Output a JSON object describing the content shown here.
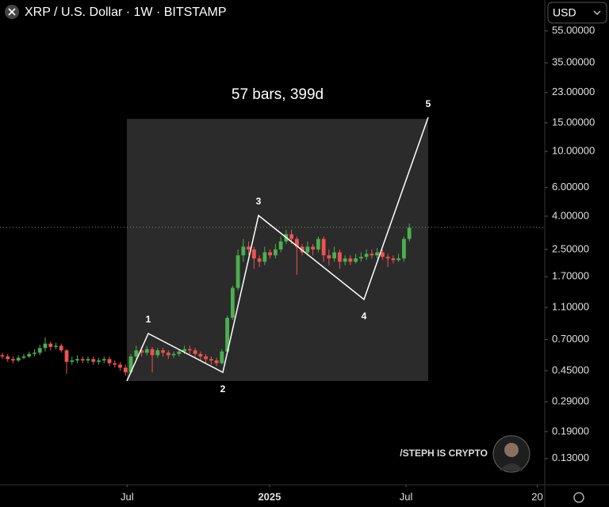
{
  "chart_data": {
    "type": "candlestick",
    "title": "XRP / U.S. Dollar · 1W · BITSTAMP",
    "currency": "USD",
    "annotation": "57 bars, 399d",
    "wave_labels": [
      "1",
      "2",
      "3",
      "4",
      "5"
    ],
    "watermark": "/STEPH IS CRYPTO",
    "log_scale": true,
    "up_color": "#4caf50",
    "down_color": "#ef5350",
    "categories": [
      null,
      null,
      null,
      null,
      null,
      null,
      null,
      null,
      null,
      null,
      null,
      null,
      null,
      null,
      null,
      null,
      null,
      null,
      null,
      null,
      null,
      null,
      null,
      null,
      null,
      null,
      null,
      null,
      null,
      null,
      null,
      null,
      null,
      null,
      null,
      null,
      null,
      null,
      null,
      null,
      null,
      null,
      null,
      null,
      null,
      null,
      null,
      null,
      null,
      null,
      null,
      null,
      null,
      null,
      null,
      null,
      null,
      null,
      null,
      null,
      null,
      null,
      null,
      null,
      null,
      null,
      null,
      null,
      null,
      null,
      null,
      null,
      null,
      null,
      null,
      null,
      null
    ],
    "open": [
      0.56,
      0.55,
      0.53,
      0.52,
      0.54,
      0.55,
      0.57,
      0.58,
      0.62,
      0.66,
      0.63,
      0.64,
      0.6,
      0.51,
      0.52,
      0.53,
      0.52,
      0.53,
      0.51,
      0.52,
      0.53,
      0.5,
      0.49,
      0.47,
      0.44,
      0.55,
      0.6,
      0.58,
      0.61,
      0.56,
      0.6,
      0.58,
      0.56,
      0.57,
      0.59,
      0.61,
      0.6,
      0.57,
      0.55,
      0.53,
      0.52,
      0.5,
      0.59,
      0.95,
      1.45,
      2.3,
      2.6,
      2.5,
      2.2,
      2.1,
      2.4,
      2.3,
      2.5,
      2.8,
      3.1,
      2.9,
      2.6,
      2.4,
      2.6,
      2.5,
      2.9,
      2.3,
      2.2,
      2.4,
      2.1,
      2.2,
      2.1,
      2.2,
      2.25,
      2.35,
      2.3,
      2.4,
      2.25,
      2.2,
      2.15,
      2.2,
      2.9
    ],
    "high": [
      0.58,
      0.57,
      0.55,
      0.56,
      0.57,
      0.59,
      0.61,
      0.65,
      0.72,
      0.68,
      0.67,
      0.66,
      0.61,
      0.55,
      0.56,
      0.55,
      0.55,
      0.55,
      0.54,
      0.55,
      0.55,
      0.52,
      0.51,
      0.49,
      0.57,
      0.64,
      0.63,
      0.64,
      0.63,
      0.62,
      0.62,
      0.6,
      0.59,
      0.61,
      0.64,
      0.64,
      0.62,
      0.59,
      0.57,
      0.55,
      0.54,
      0.61,
      0.98,
      1.5,
      2.5,
      2.9,
      2.8,
      2.6,
      2.3,
      2.6,
      2.5,
      2.7,
      3.0,
      3.3,
      3.3,
      3.0,
      2.7,
      2.8,
      2.7,
      3.0,
      3.0,
      2.5,
      2.6,
      2.5,
      2.3,
      2.3,
      2.35,
      2.4,
      2.5,
      2.5,
      2.55,
      2.5,
      2.35,
      2.3,
      2.35,
      3.0,
      3.6
    ],
    "low": [
      0.53,
      0.51,
      0.5,
      0.51,
      0.53,
      0.54,
      0.55,
      0.56,
      0.59,
      0.6,
      0.61,
      0.58,
      0.43,
      0.49,
      0.5,
      0.5,
      0.5,
      0.49,
      0.49,
      0.5,
      0.48,
      0.47,
      0.45,
      0.42,
      0.43,
      0.53,
      0.55,
      0.56,
      0.44,
      0.54,
      0.55,
      0.53,
      0.54,
      0.55,
      0.57,
      0.57,
      0.54,
      0.52,
      0.5,
      0.49,
      0.48,
      0.49,
      0.57,
      0.92,
      1.4,
      2.1,
      2.3,
      1.9,
      1.95,
      2.0,
      2.2,
      2.2,
      2.4,
      2.7,
      2.7,
      1.75,
      2.3,
      2.3,
      2.3,
      2.4,
      2.1,
      2.0,
      2.1,
      1.9,
      2.0,
      2.0,
      2.05,
      2.1,
      2.15,
      2.2,
      2.2,
      2.15,
      1.95,
      2.05,
      2.1,
      2.1,
      2.8
    ],
    "close": [
      0.55,
      0.53,
      0.52,
      0.54,
      0.55,
      0.57,
      0.58,
      0.62,
      0.66,
      0.63,
      0.64,
      0.6,
      0.51,
      0.52,
      0.53,
      0.52,
      0.53,
      0.51,
      0.52,
      0.53,
      0.5,
      0.49,
      0.47,
      0.44,
      0.55,
      0.6,
      0.58,
      0.61,
      0.56,
      0.6,
      0.58,
      0.56,
      0.57,
      0.59,
      0.61,
      0.6,
      0.57,
      0.55,
      0.53,
      0.52,
      0.5,
      0.59,
      0.95,
      1.45,
      2.3,
      2.6,
      2.5,
      2.2,
      2.1,
      2.4,
      2.3,
      2.5,
      2.8,
      3.1,
      2.9,
      2.6,
      2.4,
      2.6,
      2.5,
      2.9,
      2.3,
      2.2,
      2.4,
      2.1,
      2.2,
      2.1,
      2.2,
      2.25,
      2.35,
      2.3,
      2.4,
      2.25,
      2.2,
      2.15,
      2.2,
      2.9,
      3.4
    ],
    "xlim": [
      -0.44,
      101.3
    ],
    "xticks": [
      {
        "value": 23.3,
        "label": "Jul"
      },
      {
        "value": 49.9,
        "label": "2025"
      },
      {
        "value": 75.4,
        "label": "Jul"
      },
      {
        "value": 99.9,
        "label": "20"
      }
    ],
    "ylim": [
      0.0916,
      85.1
    ],
    "yticks": [
      {
        "value": 55,
        "label": "55.00000"
      },
      {
        "value": 35,
        "label": "35.00000"
      },
      {
        "value": 23,
        "label": "23.00000"
      },
      {
        "value": 15,
        "label": "15.00000"
      },
      {
        "value": 10,
        "label": "10.00000"
      },
      {
        "value": 6,
        "label": "6.00000"
      },
      {
        "value": 4,
        "label": "4.00000"
      },
      {
        "value": 2.5,
        "label": "2.50000"
      },
      {
        "value": 1.7,
        "label": "1.70000"
      },
      {
        "value": 1.1,
        "label": "1.10000"
      },
      {
        "value": 0.7,
        "label": "0.70000"
      },
      {
        "value": 0.45,
        "label": "0.45000"
      },
      {
        "value": 0.29,
        "label": "0.29000"
      },
      {
        "value": 0.19,
        "label": "0.19000"
      },
      {
        "value": 0.13,
        "label": "0.13000"
      }
    ]
  }
}
